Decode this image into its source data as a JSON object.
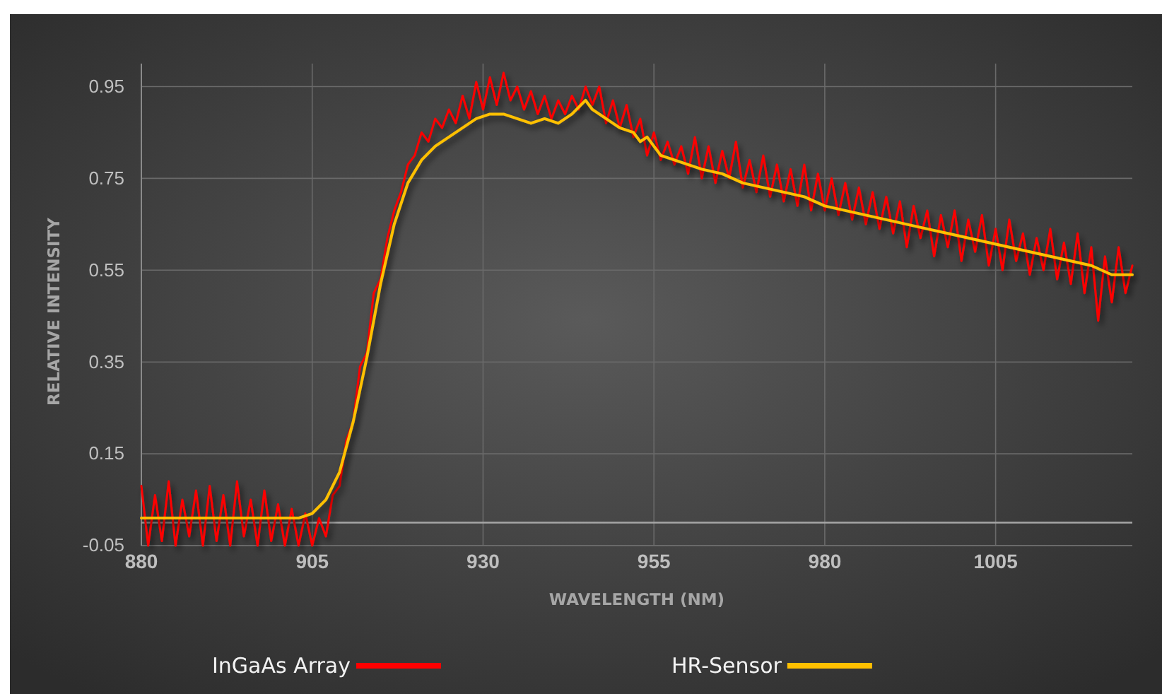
{
  "chart_data": {
    "type": "line",
    "xlabel": "WAVELENGTH (NM)",
    "ylabel": "RELATIVE INTENSITY",
    "xlim": [
      880,
      1025
    ],
    "xticks": [
      880,
      905,
      930,
      955,
      980,
      1005
    ],
    "ylim": [
      -0.05,
      1.0
    ],
    "yticks": [
      -0.05,
      0.15,
      0.35,
      0.55,
      0.75,
      0.95
    ],
    "grid": true,
    "legend": "bottom",
    "line_style": "solid",
    "marker": "none",
    "ref_lines": [
      {
        "axis": "y",
        "value": 0,
        "color": "#a6a6a6"
      }
    ],
    "series": [
      {
        "name": "InGaAs Array",
        "color": "#ff0000",
        "x": [
          880,
          881,
          882,
          883,
          884,
          885,
          886,
          887,
          888,
          889,
          890,
          891,
          892,
          893,
          894,
          895,
          896,
          897,
          898,
          899,
          900,
          901,
          902,
          903,
          904,
          905,
          906,
          907,
          908,
          909,
          910,
          911,
          912,
          913,
          914,
          915,
          916,
          917,
          918,
          919,
          920,
          921,
          922,
          923,
          924,
          925,
          926,
          927,
          928,
          929,
          930,
          931,
          932,
          933,
          934,
          935,
          936,
          937,
          938,
          939,
          940,
          941,
          942,
          943,
          944,
          945,
          946,
          947,
          948,
          949,
          950,
          951,
          952,
          953,
          954,
          955,
          956,
          957,
          958,
          959,
          960,
          961,
          962,
          963,
          964,
          965,
          966,
          967,
          968,
          969,
          970,
          971,
          972,
          973,
          974,
          975,
          976,
          977,
          978,
          979,
          980,
          981,
          982,
          983,
          984,
          985,
          986,
          987,
          988,
          989,
          990,
          991,
          992,
          993,
          994,
          995,
          996,
          997,
          998,
          999,
          1000,
          1001,
          1002,
          1003,
          1004,
          1005,
          1006,
          1007,
          1008,
          1009,
          1010,
          1011,
          1012,
          1013,
          1014,
          1015,
          1016,
          1017,
          1018,
          1019,
          1020,
          1021,
          1022,
          1023,
          1024,
          1025
        ],
        "values": [
          0.08,
          -0.05,
          0.06,
          -0.04,
          0.09,
          -0.05,
          0.05,
          -0.03,
          0.07,
          -0.05,
          0.08,
          -0.04,
          0.06,
          -0.05,
          0.09,
          -0.03,
          0.05,
          -0.05,
          0.07,
          -0.04,
          0.04,
          -0.05,
          0.03,
          -0.05,
          0.02,
          -0.05,
          0.01,
          -0.03,
          0.06,
          0.08,
          0.18,
          0.22,
          0.34,
          0.37,
          0.5,
          0.53,
          0.62,
          0.68,
          0.72,
          0.78,
          0.8,
          0.85,
          0.83,
          0.88,
          0.86,
          0.9,
          0.87,
          0.93,
          0.88,
          0.96,
          0.9,
          0.97,
          0.91,
          0.98,
          0.92,
          0.95,
          0.9,
          0.94,
          0.89,
          0.93,
          0.88,
          0.92,
          0.89,
          0.93,
          0.9,
          0.95,
          0.91,
          0.95,
          0.87,
          0.92,
          0.86,
          0.91,
          0.84,
          0.88,
          0.8,
          0.85,
          0.79,
          0.83,
          0.78,
          0.82,
          0.76,
          0.84,
          0.75,
          0.82,
          0.74,
          0.81,
          0.75,
          0.83,
          0.73,
          0.79,
          0.72,
          0.8,
          0.71,
          0.78,
          0.7,
          0.77,
          0.69,
          0.78,
          0.68,
          0.76,
          0.68,
          0.75,
          0.67,
          0.74,
          0.66,
          0.73,
          0.65,
          0.72,
          0.64,
          0.71,
          0.63,
          0.7,
          0.6,
          0.69,
          0.62,
          0.68,
          0.58,
          0.67,
          0.6,
          0.68,
          0.57,
          0.66,
          0.59,
          0.67,
          0.56,
          0.64,
          0.55,
          0.66,
          0.57,
          0.63,
          0.54,
          0.62,
          0.55,
          0.64,
          0.53,
          0.61,
          0.52,
          0.63,
          0.5,
          0.6,
          0.44,
          0.58,
          0.48,
          0.6,
          0.5,
          0.56
        ]
      },
      {
        "name": "HR-Sensor",
        "color": "#ffc000",
        "x": [
          880,
          890,
          903,
          905,
          907,
          909,
          911,
          913,
          915,
          917,
          919,
          921,
          923,
          925,
          927,
          929,
          931,
          933,
          935,
          937,
          939,
          941,
          943,
          945,
          946,
          948,
          950,
          952,
          953,
          954,
          956,
          958,
          960,
          962,
          965,
          968,
          971,
          974,
          977,
          980,
          983,
          986,
          989,
          992,
          995,
          998,
          1001,
          1004,
          1007,
          1010,
          1013,
          1016,
          1019,
          1022,
          1025
        ],
        "values": [
          0.01,
          0.01,
          0.01,
          0.02,
          0.05,
          0.11,
          0.22,
          0.36,
          0.52,
          0.65,
          0.74,
          0.79,
          0.82,
          0.84,
          0.86,
          0.88,
          0.89,
          0.89,
          0.88,
          0.87,
          0.88,
          0.87,
          0.89,
          0.92,
          0.9,
          0.88,
          0.86,
          0.85,
          0.83,
          0.84,
          0.8,
          0.79,
          0.78,
          0.77,
          0.76,
          0.74,
          0.73,
          0.72,
          0.71,
          0.69,
          0.68,
          0.67,
          0.66,
          0.65,
          0.64,
          0.63,
          0.62,
          0.61,
          0.6,
          0.59,
          0.58,
          0.57,
          0.56,
          0.54,
          0.54
        ]
      }
    ]
  }
}
